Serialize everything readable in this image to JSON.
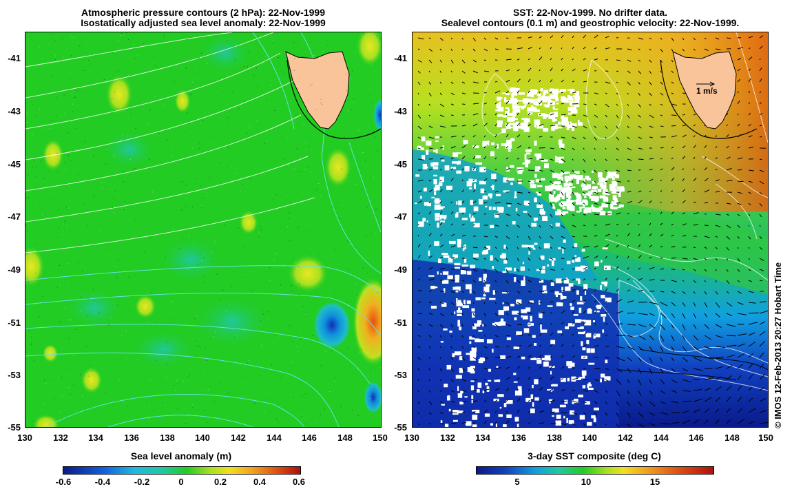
{
  "left_panel": {
    "title_line1": "Atmospheric pressure contours (2 hPa): 22-Nov-1999",
    "title_line2": "Isostatically adjusted sea level anomaly: 22-Nov-1999",
    "colorbar_label": "Sea level anomaly (m)",
    "colorbar_ticks": [
      "-0.6",
      "-0.4",
      "-0.2",
      "0",
      "0.2",
      "0.4",
      "0.6"
    ]
  },
  "right_panel": {
    "title_line1": "SST: 22-Nov-1999. No drifter data.",
    "title_line2": "Sealevel contours (0.1 m) and geostrophic velocity: 22-Nov-1999.",
    "colorbar_label": "3-day SST composite (deg C)",
    "colorbar_ticks": [
      "5",
      "10",
      "15"
    ],
    "velocity_scale": "1 m/s"
  },
  "axes": {
    "lat_ticks": [
      "-41",
      "-43",
      "-45",
      "-47",
      "-49",
      "-51",
      "-53",
      "-55"
    ],
    "lon_ticks": [
      "130",
      "132",
      "134",
      "136",
      "138",
      "140",
      "142",
      "144",
      "146",
      "148",
      "150"
    ]
  },
  "credit": "© IMOS 12-Feb-2013 20:27 Hobart Time",
  "colors": {
    "land": "#f9c49a",
    "base_green": "#22cc22",
    "contour_cyan": "#66e0e0",
    "contour_white": "#ffffff"
  }
}
